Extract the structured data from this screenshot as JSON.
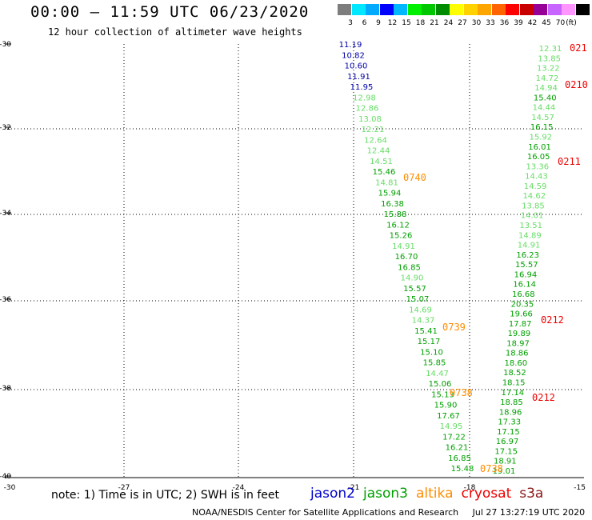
{
  "header": {
    "title": "00:00 — 11:59 UTC 06/23/2020",
    "subtitle": "12 hour collection of altimeter wave heights"
  },
  "legend": {
    "colors": [
      "#7d7d7d",
      "#00e8ff",
      "#00aaff",
      "#0000ff",
      "#00b8ff",
      "#00f000",
      "#00c800",
      "#008c00",
      "#ffff00",
      "#ffd200",
      "#ffa500",
      "#ff6400",
      "#ff0000",
      "#c80000",
      "#960096",
      "#c864ff",
      "#ff96ff",
      "#000000"
    ],
    "labels": [
      "3",
      "6",
      "9",
      "12",
      "15",
      "18",
      "21",
      "24",
      "27",
      "30",
      "33",
      "36",
      "39",
      "42",
      "45",
      "70"
    ],
    "unit": "(ft)"
  },
  "map": {
    "lat_ticks": [
      "-30",
      "-32",
      "-34",
      "-36",
      "-38",
      "-40"
    ],
    "lon_ticks": [
      "-30",
      "-27",
      "-24",
      "-21",
      "-18",
      "-15"
    ],
    "series_colors": {
      "jason2": "#0000aa",
      "jason3": "#00a000",
      "jason3_light": "#66dd66",
      "altika": "#ff8c00",
      "cryosat": "#ee0000"
    },
    "track_left": {
      "values": [
        "11.19",
        "10.82",
        "10.60",
        "11.91",
        "11.95",
        "12.98",
        "12.86",
        "13.08",
        "12.21",
        "12.64",
        "12.44",
        "14.51",
        "15.46",
        "14.81",
        "15.94",
        "16.38",
        "15.88",
        "16.12",
        "15.26",
        "14.91",
        "16.70",
        "16.85",
        "14.90",
        "15.57",
        "15.07",
        "14.69",
        "14.37",
        "15.41",
        "15.17",
        "15.10",
        "15.85",
        "14.47",
        "15.06",
        "15.13",
        "15.90",
        "17.67",
        "14.95",
        "17.22",
        "16.21",
        "16.85",
        "15.48"
      ],
      "colors": [
        "blue",
        "blue",
        "blue",
        "blue",
        "blue",
        "light",
        "light",
        "light",
        "light",
        "light",
        "light",
        "light",
        "green",
        "light",
        "green",
        "green",
        "green",
        "green",
        "green",
        "light",
        "green",
        "green",
        "light",
        "green",
        "green",
        "light",
        "light",
        "green",
        "green",
        "green",
        "green",
        "light",
        "green",
        "green",
        "green",
        "green",
        "light",
        "green",
        "green",
        "green",
        "green"
      ]
    },
    "track_right": {
      "values": [
        "12.31",
        "13.85",
        "13.22",
        "14.72",
        "14.94",
        "15.40",
        "14.44",
        "14.57",
        "16.15",
        "15.92",
        "16.01",
        "16.05",
        "13.36",
        "14.43",
        "14.59",
        "14.62",
        "13.85",
        "14.01",
        "13.51",
        "14.89",
        "14.91",
        "16.23",
        "15.57",
        "16.94",
        "16.14",
        "16.68",
        "20.35",
        "19.66",
        "17.87",
        "19.89",
        "18.97",
        "18.86",
        "18.60",
        "18.52",
        "18.15",
        "17.14",
        "18.85",
        "18.96",
        "17.33",
        "17.15",
        "16.97",
        "17.15",
        "18.91",
        "19.01"
      ],
      "colors": [
        "light",
        "light",
        "light",
        "light",
        "light",
        "green",
        "light",
        "light",
        "green",
        "light",
        "green",
        "green",
        "light",
        "light",
        "light",
        "light",
        "light",
        "light",
        "light",
        "light",
        "light",
        "green",
        "green",
        "green",
        "green",
        "green",
        "green",
        "green",
        "green",
        "green",
        "green",
        "green",
        "green",
        "green",
        "green",
        "green",
        "green",
        "green",
        "green",
        "green",
        "green",
        "green",
        "green",
        "green"
      ]
    },
    "time_labels": [
      {
        "text": "0740",
        "sat": "altika"
      },
      {
        "text": "0739",
        "sat": "altika"
      },
      {
        "text": "0738",
        "sat": "altika"
      },
      {
        "text": "0738",
        "sat": "altika"
      },
      {
        "text": "021",
        "sat": "cryosat"
      },
      {
        "text": "0210",
        "sat": "cryosat"
      },
      {
        "text": "0211",
        "sat": "cryosat"
      },
      {
        "text": "0212",
        "sat": "cryosat"
      },
      {
        "text": "0212",
        "sat": "cryosat"
      }
    ]
  },
  "footer": {
    "note": "note: 1) Time is in UTC; 2) SWH is in feet",
    "satellites": [
      {
        "name": "jason2",
        "color": "#0000cc"
      },
      {
        "name": "jason3",
        "color": "#00a000"
      },
      {
        "name": "altika",
        "color": "#ff8c00"
      },
      {
        "name": "cryosat",
        "color": "#ee0000"
      },
      {
        "name": "s3a",
        "color": "#8b1a1a"
      }
    ],
    "credit_org": "NOAA/NESDIS Center for Satellite Applications and Research",
    "credit_time": "Jul 27 13:27:19 UTC 2020"
  }
}
